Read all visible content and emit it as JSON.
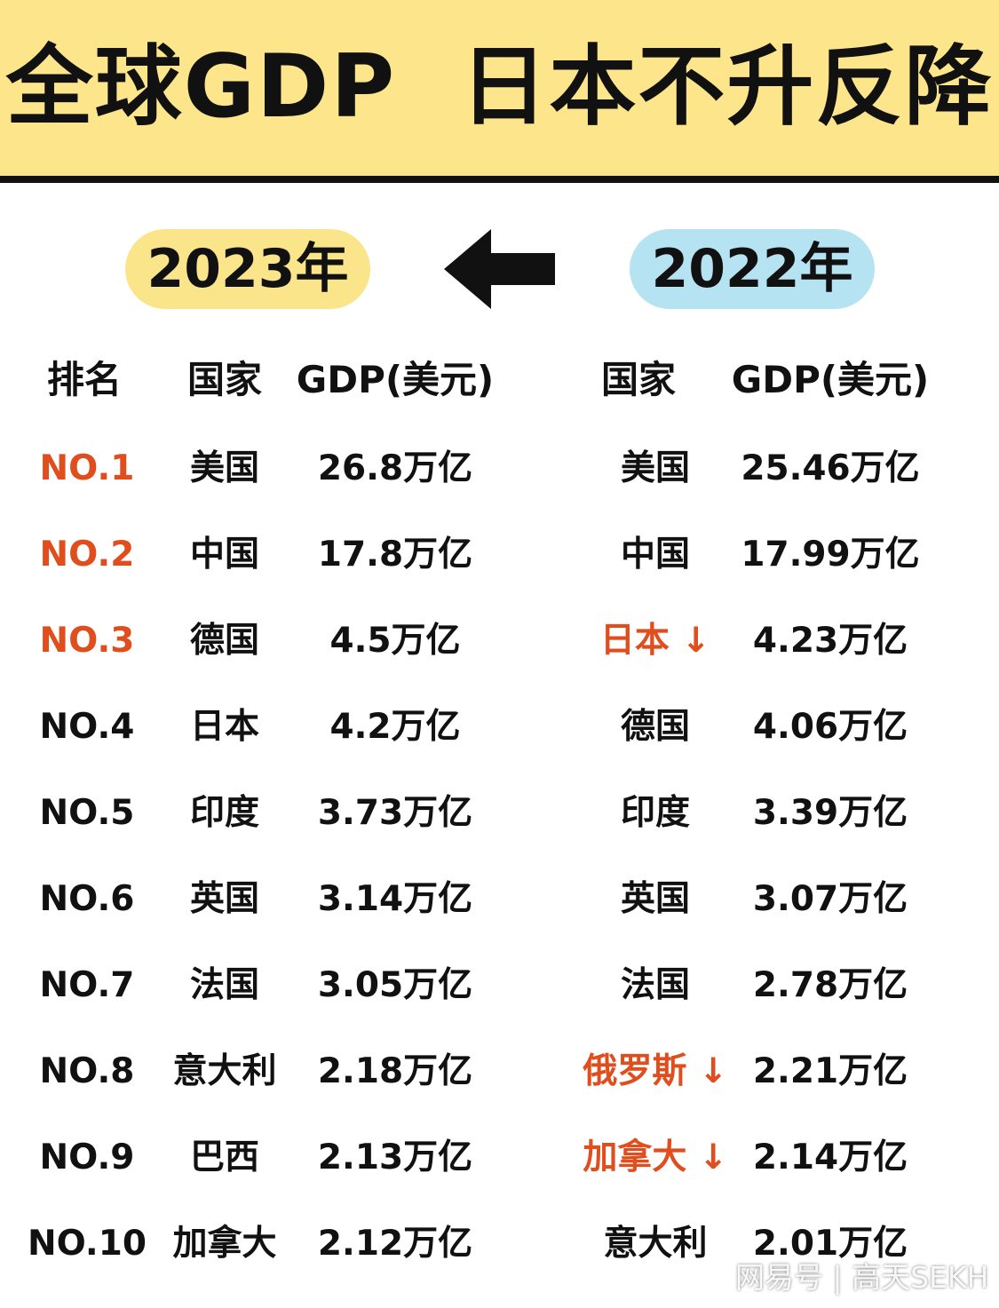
{
  "header": {
    "title": "全球GDP  日本不升反降",
    "bg_color": "#fce58a"
  },
  "years": {
    "left": "2023年",
    "right": "2022年",
    "left_color": "#fbe58a",
    "right_color": "#b5e3f2",
    "arrow_icon": "left-arrow-icon"
  },
  "columns": {
    "rank": "排名",
    "country_2023": "国家",
    "gdp_2023": "GDP(美元)",
    "country_2022": "国家",
    "gdp_2022": "GDP(美元)"
  },
  "colors": {
    "highlight": "#e04e1d",
    "text": "#111111"
  },
  "rows": [
    {
      "rank": "NO.1",
      "rank_red": true,
      "c23": "美国",
      "g23": "26.8万亿",
      "c22": "美国",
      "c22_red": false,
      "g22": "25.46万亿"
    },
    {
      "rank": "NO.2",
      "rank_red": true,
      "c23": "中国",
      "g23": "17.8万亿",
      "c22": "中国",
      "c22_red": false,
      "g22": "17.99万亿"
    },
    {
      "rank": "NO.3",
      "rank_red": true,
      "c23": "德国",
      "g23": "4.5万亿",
      "c22": "日本 ↓",
      "c22_red": true,
      "g22": "4.23万亿"
    },
    {
      "rank": "NO.4",
      "rank_red": false,
      "c23": "日本",
      "g23": "4.2万亿",
      "c22": "德国",
      "c22_red": false,
      "g22": "4.06万亿"
    },
    {
      "rank": "NO.5",
      "rank_red": false,
      "c23": "印度",
      "g23": "3.73万亿",
      "c22": "印度",
      "c22_red": false,
      "g22": "3.39万亿"
    },
    {
      "rank": "NO.6",
      "rank_red": false,
      "c23": "英国",
      "g23": "3.14万亿",
      "c22": "英国",
      "c22_red": false,
      "g22": "3.07万亿"
    },
    {
      "rank": "NO.7",
      "rank_red": false,
      "c23": "法国",
      "g23": "3.05万亿",
      "c22": "法国",
      "c22_red": false,
      "g22": "2.78万亿"
    },
    {
      "rank": "NO.8",
      "rank_red": false,
      "c23": "意大利",
      "g23": "2.18万亿",
      "c22": "俄罗斯 ↓",
      "c22_red": true,
      "g22": "2.21万亿"
    },
    {
      "rank": "NO.9",
      "rank_red": false,
      "c23": "巴西",
      "g23": "2.13万亿",
      "c22": "加拿大 ↓",
      "c22_red": true,
      "g22": "2.14万亿"
    },
    {
      "rank": "NO.10",
      "rank_red": false,
      "c23": "加拿大",
      "g23": "2.12万亿",
      "c22": "意大利",
      "c22_red": false,
      "g22": "2.01万亿"
    }
  ],
  "chart_data": {
    "type": "table",
    "title": "全球GDP  日本不升反降",
    "columns": [
      "排名",
      "国家",
      "GDP(美元)",
      "国家",
      "GDP(美元)"
    ],
    "series": [
      {
        "name": "2023年",
        "categories": [
          "美国",
          "中国",
          "德国",
          "日本",
          "印度",
          "英国",
          "法国",
          "意大利",
          "巴西",
          "加拿大"
        ],
        "values": [
          "26.8万亿",
          "17.8万亿",
          "4.5万亿",
          "4.2万亿",
          "3.73万亿",
          "3.14万亿",
          "3.05万亿",
          "2.18万亿",
          "2.13万亿",
          "2.12万亿"
        ],
        "values_numeric_trillion_usd": [
          26.8,
          17.8,
          4.5,
          4.2,
          3.73,
          3.14,
          3.05,
          2.18,
          2.13,
          2.12
        ]
      },
      {
        "name": "2022年",
        "categories": [
          "美国",
          "中国",
          "日本",
          "德国",
          "印度",
          "英国",
          "法国",
          "俄罗斯",
          "加拿大",
          "意大利"
        ],
        "values": [
          "25.46万亿",
          "17.99万亿",
          "4.23万亿",
          "4.06万亿",
          "3.39万亿",
          "3.07万亿",
          "2.78万亿",
          "2.21万亿",
          "2.14万亿",
          "2.01万亿"
        ],
        "values_numeric_trillion_usd": [
          25.46,
          17.99,
          4.23,
          4.06,
          3.39,
          3.07,
          2.78,
          2.21,
          2.14,
          2.01
        ]
      }
    ],
    "ranks": [
      "NO.1",
      "NO.2",
      "NO.3",
      "NO.4",
      "NO.5",
      "NO.6",
      "NO.7",
      "NO.8",
      "NO.9",
      "NO.10"
    ]
  },
  "watermark": "网易号 | 高天SEKH"
}
